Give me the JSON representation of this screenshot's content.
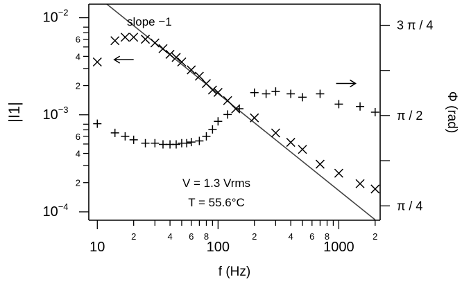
{
  "chart_data": {
    "type": "scatter",
    "title": "",
    "xlabel": "f (Hz)",
    "ylabel_left": "|I1|",
    "ylabel_right": "Φ (rad)",
    "x_scale": "log",
    "y_left_scale": "log",
    "xlim": [
      8.5,
      2200
    ],
    "ylim_left": [
      8.2e-05,
      0.0138
    ],
    "ylim_right": [
      0.66,
      2.54
    ],
    "grid": false,
    "x_major_ticks": [
      {
        "value": 10,
        "label": "10"
      },
      {
        "value": 100,
        "label": "100"
      },
      {
        "value": 1000,
        "label": "1000"
      }
    ],
    "x_minor_ticks": [
      {
        "value": 20,
        "label": "2"
      },
      {
        "value": 30,
        "label": ""
      },
      {
        "value": 40,
        "label": "4"
      },
      {
        "value": 50,
        "label": ""
      },
      {
        "value": 60,
        "label": "6"
      },
      {
        "value": 70,
        "label": ""
      },
      {
        "value": 80,
        "label": "8"
      },
      {
        "value": 90,
        "label": ""
      },
      {
        "value": 200,
        "label": "2"
      },
      {
        "value": 300,
        "label": ""
      },
      {
        "value": 400,
        "label": "4"
      },
      {
        "value": 500,
        "label": ""
      },
      {
        "value": 600,
        "label": "6"
      },
      {
        "value": 700,
        "label": ""
      },
      {
        "value": 800,
        "label": "8"
      },
      {
        "value": 900,
        "label": ""
      },
      {
        "value": 2000,
        "label": "2"
      }
    ],
    "y_left_major_ticks": [
      {
        "value": 0.01,
        "base": "10",
        "exp": "−2"
      },
      {
        "value": 0.001,
        "base": "10",
        "exp": "−3"
      },
      {
        "value": 0.0001,
        "base": "10",
        "exp": "−4"
      }
    ],
    "y_left_minor_ticks": [
      {
        "value": 0.006,
        "label": "6"
      },
      {
        "value": 0.004,
        "label": "4"
      },
      {
        "value": 0.002,
        "label": "2"
      },
      {
        "value": 0.0006,
        "label": "6"
      },
      {
        "value": 0.0004,
        "label": "4"
      },
      {
        "value": 0.0002,
        "label": "2"
      },
      {
        "value": 0.008,
        "label": ""
      },
      {
        "value": 0.007,
        "label": ""
      },
      {
        "value": 0.005,
        "label": ""
      },
      {
        "value": 0.003,
        "label": ""
      },
      {
        "value": 0.0008,
        "label": ""
      },
      {
        "value": 0.0007,
        "label": ""
      },
      {
        "value": 0.0005,
        "label": ""
      },
      {
        "value": 0.0003,
        "label": ""
      }
    ],
    "y_right_major_ticks": [
      {
        "value": 2.356,
        "label": "3 π / 4"
      },
      {
        "value": 1.571,
        "label": "π / 2"
      },
      {
        "value": 0.785,
        "label": "π / 4"
      }
    ],
    "y_right_minor_ticks": [
      1.963,
      1.178
    ],
    "series": [
      {
        "marker": "x",
        "axis": "left",
        "x": [
          10,
          14,
          17,
          20,
          25,
          30,
          35,
          40,
          45,
          50,
          60,
          70,
          80,
          90,
          100,
          120,
          140,
          200,
          300,
          400,
          500,
          700,
          1000,
          1500,
          2000
        ],
        "y": [
          0.0035,
          0.0058,
          0.0063,
          0.0063,
          0.006,
          0.0055,
          0.0048,
          0.0042,
          0.0039,
          0.0035,
          0.0029,
          0.0025,
          0.0021,
          0.0018,
          0.0017,
          0.0014,
          0.00115,
          0.00093,
          0.00065,
          0.00052,
          0.00044,
          0.00031,
          0.00025,
          0.000195,
          0.000172
        ]
      },
      {
        "marker": "+",
        "axis": "right",
        "x": [
          10,
          14,
          17,
          20,
          25,
          30,
          35,
          40,
          45,
          50,
          55,
          60,
          70,
          80,
          90,
          100,
          120,
          150,
          200,
          250,
          300,
          400,
          500,
          700,
          1000,
          1500,
          2000
        ],
        "y": [
          1.5,
          1.42,
          1.39,
          1.36,
          1.33,
          1.33,
          1.32,
          1.32,
          1.32,
          1.33,
          1.33,
          1.34,
          1.35,
          1.39,
          1.45,
          1.52,
          1.58,
          1.63,
          1.77,
          1.76,
          1.78,
          1.76,
          1.73,
          1.76,
          1.67,
          1.65,
          1.6
        ]
      }
    ],
    "reference_line": {
      "label": "slope −1",
      "x": [
        12,
        2000
      ],
      "y": [
        0.0138,
        8.28e-05
      ]
    },
    "arrows": [
      {
        "direction": "left",
        "x": 20,
        "y": 0.0037
      },
      {
        "direction": "right",
        "x": 950,
        "y": 1.85
      }
    ],
    "annotations": [
      "V = 1.3 Vrms",
      "T = 55.6°C"
    ]
  }
}
